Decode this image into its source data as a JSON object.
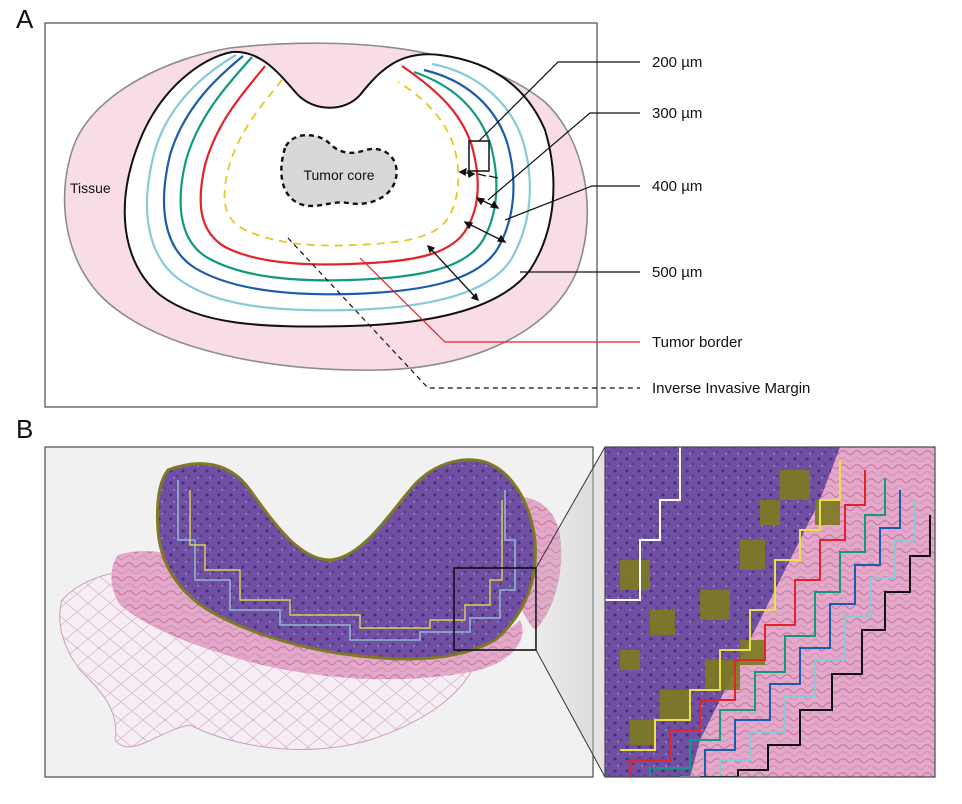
{
  "panels": {
    "a": {
      "letter": "A"
    },
    "b": {
      "letter": "B"
    }
  },
  "labels": {
    "tissue": "Tissue",
    "tumor_core": "Tumor core",
    "d200": "200 µm",
    "d300": "300 µm",
    "d400": "400 µm",
    "d500": "500 µm",
    "tumor_border": "Tumor border",
    "inverse_margin": "Inverse Invasive Margin"
  },
  "colors": {
    "tissue_fill": "#f9dde6",
    "tissue_stroke": "#8c8c8c",
    "tumor_border": "#e2232a",
    "inverse_margin": "#e8c81c",
    "band_200": "#109a7e",
    "band_300": "#1a5cad",
    "band_400": "#86cbd6",
    "band_500": "#111111",
    "core_fill": "#d8d8d8",
    "histology_tumor": "#6a4a9c",
    "histology_stroma": "#c86aa2",
    "annotation_olive": "#7e7a24"
  }
}
